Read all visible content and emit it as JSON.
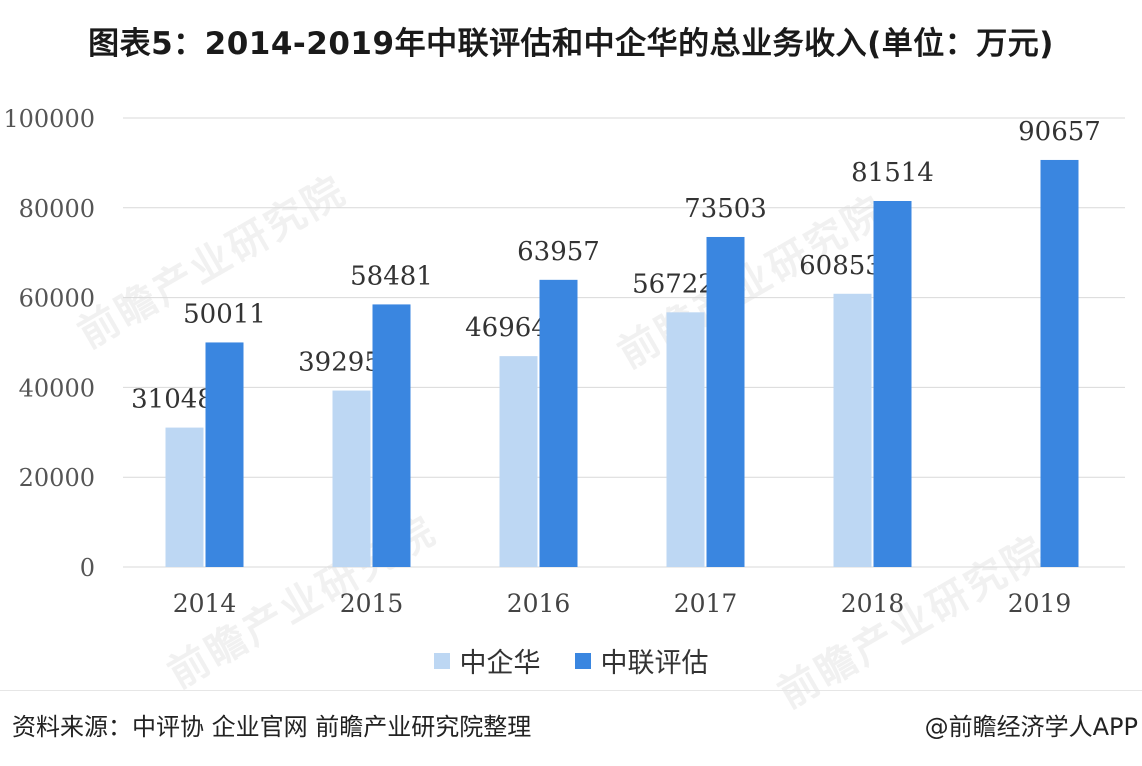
{
  "title": "图表5：2014-2019年中联评估和中企华的总业务收入(单位：万元)",
  "source": "资料来源：中评协 企业官网 前瞻产业研究院整理",
  "credit": "@前瞻经济学人APP",
  "watermark": "前瞻产业研究院",
  "colors": {
    "series1": "#bdd7f3",
    "series2": "#3a86e0"
  },
  "chart_data": {
    "type": "bar",
    "categories": [
      "2014",
      "2015",
      "2016",
      "2017",
      "2018",
      "2019"
    ],
    "series": [
      {
        "name": "中企华",
        "values": [
          31048,
          39295,
          46964,
          56722,
          60853,
          null
        ]
      },
      {
        "name": "中联评估",
        "values": [
          50011,
          58481,
          63957,
          73503,
          81514,
          90657
        ]
      }
    ],
    "ylim": [
      0,
      100000
    ],
    "yticks": [
      "0",
      "20000",
      "40000",
      "60000",
      "80000",
      "100000"
    ],
    "grid": true,
    "legend": "bottom"
  }
}
